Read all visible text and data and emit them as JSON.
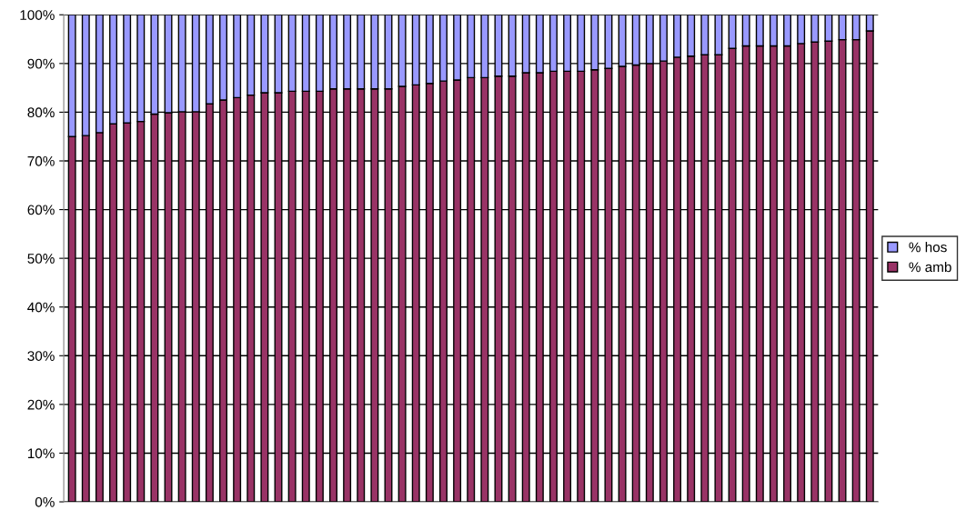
{
  "chart_data": {
    "type": "bar",
    "stacked": true,
    "categories": [
      null,
      null,
      null,
      null,
      null,
      null,
      null,
      null,
      null,
      null,
      null,
      null,
      null,
      null,
      null,
      null,
      null,
      null,
      null,
      null,
      null,
      null,
      null,
      null,
      null,
      null,
      null,
      null,
      null,
      null,
      null,
      null,
      null,
      null,
      null,
      null,
      null,
      null,
      null,
      null,
      null,
      null,
      null,
      null,
      null,
      null,
      null,
      null,
      null,
      null,
      null,
      null,
      null,
      null,
      null,
      null,
      null,
      null,
      null
    ],
    "series": [
      {
        "name": "% amb",
        "color": "#993366",
        "values": [
          75.0,
          75.2,
          75.8,
          77.6,
          77.8,
          78.1,
          79.6,
          79.9,
          80.1,
          80.1,
          81.7,
          82.5,
          83.0,
          83.5,
          84.0,
          84.0,
          84.3,
          84.3,
          84.3,
          84.8,
          84.8,
          84.8,
          84.8,
          84.8,
          85.3,
          85.6,
          85.9,
          86.4,
          86.6,
          87.1,
          87.1,
          87.4,
          87.4,
          88.1,
          88.1,
          88.4,
          88.4,
          88.4,
          88.7,
          89.0,
          89.4,
          89.7,
          90.0,
          90.5,
          91.3,
          91.5,
          91.8,
          91.8,
          93.1,
          93.6,
          93.6,
          93.6,
          93.6,
          94.1,
          94.4,
          94.6,
          94.9,
          94.9,
          96.7
        ]
      },
      {
        "name": "% hos",
        "color": "#9999ff",
        "values": [
          25.0,
          24.8,
          24.2,
          22.4,
          22.2,
          21.9,
          20.4,
          20.1,
          19.9,
          19.9,
          18.3,
          17.5,
          17.0,
          16.5,
          16.0,
          16.0,
          15.7,
          15.7,
          15.7,
          15.2,
          15.2,
          15.2,
          15.2,
          15.2,
          14.7,
          14.4,
          14.1,
          13.6,
          13.4,
          12.9,
          12.9,
          12.6,
          12.6,
          11.9,
          11.9,
          11.6,
          11.6,
          11.6,
          11.3,
          11.0,
          10.6,
          10.3,
          10.0,
          9.5,
          8.7,
          8.5,
          8.2,
          8.2,
          6.9,
          6.4,
          6.4,
          6.4,
          6.4,
          5.9,
          5.6,
          5.4,
          5.1,
          5.1,
          3.3
        ]
      }
    ],
    "ylim": [
      0,
      100
    ],
    "yticks": [
      {
        "value": 0,
        "label": "0%"
      },
      {
        "value": 10,
        "label": "10%"
      },
      {
        "value": 20,
        "label": "20%"
      },
      {
        "value": 30,
        "label": "30%"
      },
      {
        "value": 40,
        "label": "40%"
      },
      {
        "value": 50,
        "label": "50%"
      },
      {
        "value": 60,
        "label": "60%"
      },
      {
        "value": 70,
        "label": "70%"
      },
      {
        "value": 80,
        "label": "80%"
      },
      {
        "value": 90,
        "label": "90%"
      },
      {
        "value": 100,
        "label": "100%"
      }
    ],
    "grid": "y",
    "legend": "right"
  }
}
